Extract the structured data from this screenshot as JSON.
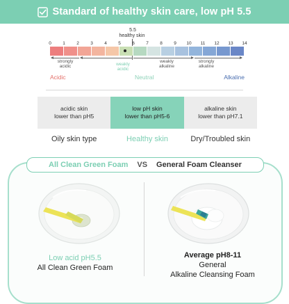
{
  "banner": {
    "title": "Standard of healthy skin care, low pH 5.5",
    "icon": "checkbox-check-icon",
    "color": "#7ccfb3"
  },
  "ph_scale": {
    "healthy_value": "5.5",
    "healthy_label": "healthy skin",
    "numbers": [
      "0",
      "1",
      "2",
      "3",
      "4",
      "5",
      "6",
      "7",
      "8",
      "9",
      "10",
      "11",
      "12",
      "13",
      "14"
    ],
    "colors": [
      "#ed7e7e",
      "#f0908a",
      "#f2a596",
      "#f3b59f",
      "#f5c7a8",
      "#c9dfb4",
      "#b6d9c1",
      "#d5e4e2",
      "#b8cfe2",
      "#a8c2df",
      "#93b5dc",
      "#85a7d6",
      "#7798cf",
      "#6a87c7"
    ],
    "sub_labels": {
      "strongly_acidic": "strongly\nacidic",
      "weakly_acidic": "weakly\nacidic",
      "weakly_alkaline": "weakly\nalkaline",
      "strongly_alkaline": "strongly\nalkaline"
    },
    "categories": {
      "acidic": "Acidic",
      "neutral": "Neutral",
      "alkaline": "Alkaline"
    }
  },
  "boxes": [
    {
      "text": "acidic skin\nlower than pH5",
      "label": "Oily skin type"
    },
    {
      "text": "low pH skin\nlower than pH5-6",
      "label": "Healthy skin"
    },
    {
      "text": "alkaline skin\nlower than pH7.1",
      "label": "Dry/Troubled skin"
    }
  ],
  "comparison": {
    "left_title": "All Clean Green Foam",
    "vs": "VS",
    "right_title": "General Foam Cleanser",
    "left_caption_1": "Low acid pH5.5",
    "left_caption_2": "All Clean Green Foam",
    "right_caption_1": "Average pH8-11",
    "right_caption_2": "General",
    "right_caption_3": "Alkaline Cleansing Foam"
  }
}
